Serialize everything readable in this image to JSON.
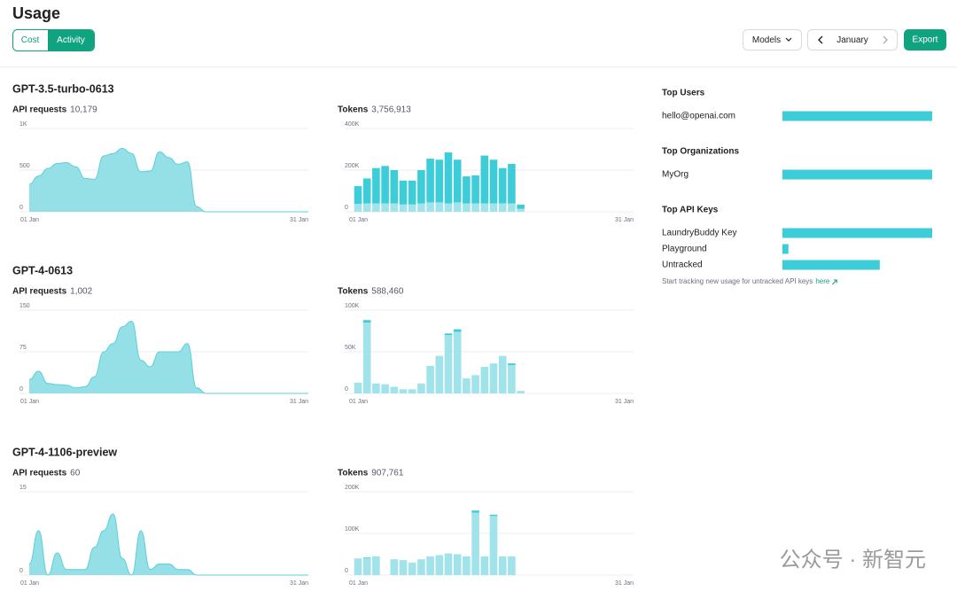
{
  "header": {
    "title": "Usage",
    "tabs": [
      "Cost",
      "Activity"
    ],
    "active_tab": 1,
    "models_button": "Models",
    "month": "January",
    "export_button": "Export"
  },
  "models": [
    {
      "name": "GPT-3.5-turbo-0613",
      "requests": {
        "label": "API requests",
        "value": "10,179"
      },
      "tokens": {
        "label": "Tokens",
        "value": "3,756,913"
      },
      "area_chart": {
        "type": "area",
        "color": "#94e0e6",
        "line_color": "#5ccfd8",
        "ylim": [
          0,
          1000
        ],
        "yticks": [
          0,
          500,
          {
            "value": 1000,
            "label": "1K"
          }
        ],
        "x_labels": [
          "01 Jan",
          "31 Jan"
        ],
        "values": [
          330,
          430,
          520,
          580,
          590,
          540,
          400,
          390,
          670,
          700,
          760,
          700,
          480,
          490,
          720,
          650,
          570,
          600,
          60,
          0,
          0,
          0,
          0,
          0,
          0,
          0,
          0,
          0,
          0,
          0,
          0
        ]
      },
      "bar_chart": {
        "type": "bar",
        "stacked": true,
        "ylim": [
          0,
          400000
        ],
        "yticks": [
          0,
          {
            "value": 200000,
            "label": "200K"
          },
          {
            "value": 400000,
            "label": "400K"
          }
        ],
        "x_labels": [
          "01 Jan",
          "31 Jan"
        ],
        "series": [
          {
            "color": "#a1e3ea",
            "values": [
              38000,
              40000,
              40000,
              40000,
              40000,
              35000,
              35000,
              40000,
              45000,
              45000,
              40000,
              45000,
              40000,
              40000,
              40000,
              40000,
              40000,
              40000,
              14000,
              0,
              0,
              0,
              0,
              0,
              0,
              0,
              0,
              0,
              0,
              0,
              0
            ]
          },
          {
            "color": "#3dcdd9",
            "values": [
              85000,
              120000,
              170000,
              180000,
              160000,
              115000,
              115000,
              160000,
              210000,
              205000,
              245000,
              205000,
              130000,
              135000,
              230000,
              210000,
              170000,
              190000,
              20000,
              0,
              0,
              0,
              0,
              0,
              0,
              0,
              0,
              0,
              0,
              0,
              0
            ]
          }
        ]
      }
    },
    {
      "name": "GPT-4-0613",
      "requests": {
        "label": "API requests",
        "value": "1,002"
      },
      "tokens": {
        "label": "Tokens",
        "value": "588,460"
      },
      "area_chart": {
        "type": "area",
        "color": "#94e0e6",
        "line_color": "#5ccfd8",
        "ylim": [
          0,
          150
        ],
        "yticks": [
          0,
          75,
          150
        ],
        "x_labels": [
          "01 Jan",
          "31 Jan"
        ],
        "values": [
          25,
          40,
          18,
          16,
          15,
          10,
          12,
          30,
          75,
          90,
          120,
          130,
          60,
          48,
          75,
          75,
          75,
          90,
          10,
          0,
          0,
          0,
          0,
          0,
          0,
          0,
          0,
          0,
          0,
          0,
          0
        ]
      },
      "bar_chart": {
        "type": "bar",
        "stacked": true,
        "ylim": [
          0,
          100000
        ],
        "yticks": [
          0,
          {
            "value": 50000,
            "label": "50K"
          },
          {
            "value": 100000,
            "label": "100K"
          }
        ],
        "x_labels": [
          "01 Jan",
          "31 Jan"
        ],
        "series": [
          {
            "color": "#a1e3ea",
            "values": [
              13000,
              85000,
              12000,
              11000,
              8000,
              5000,
              5000,
              12000,
              33000,
              45000,
              70000,
              74000,
              18000,
              22000,
              32000,
              36000,
              45000,
              34000,
              3000,
              0,
              0,
              0,
              0,
              0,
              0,
              0,
              0,
              0,
              0,
              0,
              0
            ]
          },
          {
            "color": "#3dcdd9",
            "values": [
              0,
              3000,
              0,
              0,
              0,
              0,
              0,
              0,
              0,
              0,
              2000,
              3000,
              0,
              0,
              0,
              0,
              0,
              2000,
              0,
              0,
              0,
              0,
              0,
              0,
              0,
              0,
              0,
              0,
              0,
              0,
              0
            ]
          }
        ]
      }
    },
    {
      "name": "GPT-4-1106-preview",
      "requests": {
        "label": "API requests",
        "value": "60"
      },
      "tokens": {
        "label": "Tokens",
        "value": "907,761"
      },
      "area_chart": {
        "type": "area",
        "color": "#94e0e6",
        "line_color": "#5ccfd8",
        "ylim": [
          0,
          15
        ],
        "yticks": [
          0,
          15
        ],
        "x_labels": [
          "01 Jan",
          "31 Jan"
        ],
        "values": [
          2,
          8,
          0,
          4,
          1,
          1,
          1,
          5,
          8,
          11,
          3,
          0,
          8,
          1,
          2,
          2,
          1,
          1,
          0,
          0,
          0,
          0,
          0,
          0,
          0,
          0,
          0,
          0,
          0,
          0,
          0
        ]
      },
      "bar_chart": {
        "type": "bar",
        "stacked": true,
        "ylim": [
          0,
          200000
        ],
        "yticks": [
          0,
          {
            "value": 100000,
            "label": "100K"
          },
          {
            "value": 200000,
            "label": "200K"
          }
        ],
        "x_labels": [
          "01 Jan",
          "31 Jan"
        ],
        "series": [
          {
            "color": "#a1e3ea",
            "values": [
              40000,
              40000,
              45000,
              0,
              38000,
              36000,
              30000,
              38000,
              45000,
              48000,
              52000,
              50000,
              45000,
              150000,
              45000,
              142000,
              45000,
              45000,
              0,
              0,
              0,
              0,
              0,
              0,
              0,
              0,
              0,
              0,
              0,
              0,
              0
            ]
          },
          {
            "color": "#3dcdd9",
            "values": [
              0,
              2000,
              0,
              0,
              0,
              0,
              0,
              0,
              0,
              0,
              0,
              0,
              0,
              5000,
              0,
              3000,
              0,
              0,
              0,
              0,
              0,
              0,
              0,
              0,
              0,
              0,
              0,
              0,
              0,
              0,
              0
            ]
          }
        ]
      }
    }
  ],
  "sidebar": {
    "color": "#3dcdd9",
    "max": 100,
    "groups": [
      {
        "title": "Top Users",
        "items": [
          {
            "label": "hello@openai.com",
            "value": 100
          }
        ]
      },
      {
        "title": "Top Organizations",
        "items": [
          {
            "label": "MyOrg",
            "value": 100
          }
        ]
      },
      {
        "title": "Top API Keys",
        "items": [
          {
            "label": "LaundryBuddy Key",
            "value": 100
          },
          {
            "label": "Playground",
            "value": 4
          },
          {
            "label": "Untracked",
            "value": 65
          }
        ]
      }
    ],
    "note": "Start tracking new usage for untracked API keys",
    "note_link": "here"
  },
  "watermark": "公众号 · 新智元"
}
